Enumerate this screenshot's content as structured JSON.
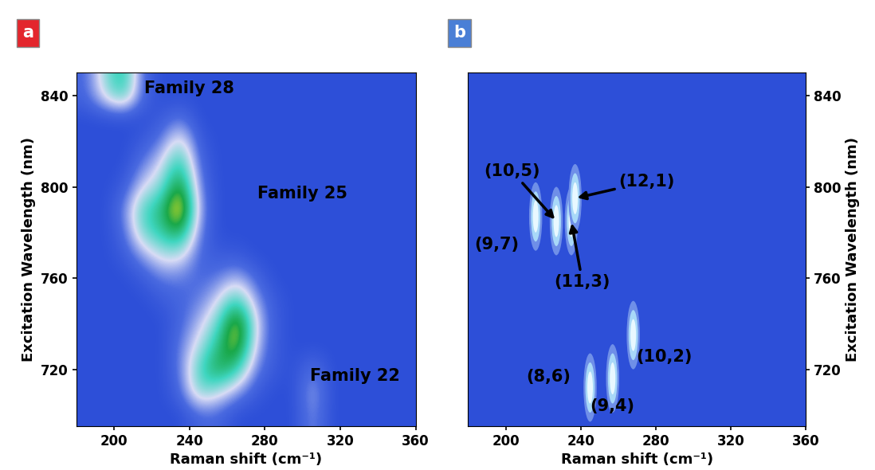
{
  "chart_data": [
    {
      "type": "heatmap",
      "panel_label": "a",
      "color": "#e3262d",
      "x_label": "Raman shift (cm⁻¹)",
      "y_label": "Excitation Wavelength (nm)",
      "xlim": [
        180,
        360
      ],
      "xticks": [
        200,
        240,
        280,
        320,
        360
      ],
      "ylim": [
        695,
        850
      ],
      "yticks": [
        720,
        760,
        800,
        840
      ],
      "x": [
        185,
        195,
        205,
        215,
        225,
        235,
        245,
        255,
        265,
        275,
        285,
        295,
        305,
        315,
        325,
        335,
        345,
        355
      ],
      "y": [
        700,
        710,
        720,
        730,
        740,
        750,
        760,
        770,
        780,
        790,
        800,
        810,
        820,
        830,
        840,
        850
      ],
      "cells": [
        [
          0,
          0,
          0,
          0,
          0,
          0,
          0.1,
          0.1,
          0,
          0,
          0,
          0,
          0.2,
          0,
          0,
          0,
          0,
          0
        ],
        [
          0,
          0,
          0,
          0,
          0,
          0.1,
          0.45,
          0.35,
          0.2,
          0.05,
          0,
          0,
          0.25,
          0,
          0,
          0,
          0,
          0
        ],
        [
          0,
          0,
          0,
          0,
          0,
          0.15,
          0.5,
          0.7,
          0.55,
          0.15,
          0.05,
          0,
          0.15,
          0,
          0,
          0,
          0,
          0
        ],
        [
          0,
          0,
          0,
          0,
          0,
          0.15,
          0.35,
          0.6,
          0.85,
          0.25,
          0.05,
          0,
          0,
          0,
          0,
          0,
          0,
          0
        ],
        [
          0,
          0,
          0,
          0,
          0,
          0.1,
          0.25,
          0.45,
          0.9,
          0.3,
          0.05,
          0,
          0,
          0,
          0,
          0,
          0,
          0
        ],
        [
          0,
          0,
          0,
          0,
          0.05,
          0.1,
          0.15,
          0.3,
          0.55,
          0.2,
          0.05,
          0,
          0,
          0,
          0,
          0,
          0,
          0
        ],
        [
          0,
          0,
          0,
          0.05,
          0.15,
          0.15,
          0.1,
          0.15,
          0.25,
          0.1,
          0,
          0,
          0,
          0,
          0,
          0,
          0,
          0
        ],
        [
          0,
          0,
          0.05,
          0.2,
          0.35,
          0.35,
          0.1,
          0.05,
          0.05,
          0,
          0,
          0,
          0,
          0,
          0,
          0,
          0,
          0
        ],
        [
          0,
          0,
          0.1,
          0.45,
          0.55,
          0.7,
          0.15,
          0,
          0,
          0,
          0,
          0,
          0,
          0,
          0,
          0,
          0,
          0
        ],
        [
          0,
          0,
          0.15,
          0.5,
          0.6,
          1.0,
          0.2,
          0,
          0,
          0,
          0,
          0,
          0,
          0,
          0,
          0,
          0,
          0
        ],
        [
          0,
          0,
          0.05,
          0.3,
          0.4,
          0.8,
          0.15,
          0,
          0,
          0,
          0,
          0,
          0,
          0,
          0,
          0,
          0,
          0
        ],
        [
          0,
          0,
          0,
          0.15,
          0.3,
          0.6,
          0.1,
          0,
          0,
          0,
          0,
          0,
          0,
          0,
          0,
          0,
          0,
          0
        ],
        [
          0,
          0,
          0,
          0.05,
          0.15,
          0.4,
          0.05,
          0,
          0,
          0,
          0,
          0,
          0,
          0,
          0,
          0,
          0,
          0
        ],
        [
          0,
          0,
          0,
          0,
          0.05,
          0.15,
          0,
          0,
          0,
          0,
          0,
          0,
          0,
          0,
          0,
          0,
          0,
          0
        ],
        [
          0.1,
          0.35,
          0.55,
          0.1,
          0,
          0,
          0,
          0,
          0,
          0,
          0,
          0,
          0,
          0,
          0,
          0,
          0,
          0
        ],
        [
          0.1,
          0.4,
          0.6,
          0.1,
          0,
          0,
          0,
          0,
          0,
          0,
          0,
          0,
          0,
          0,
          0,
          0,
          0,
          0
        ]
      ],
      "annotations": [
        {
          "text": "Family 28",
          "x": 240,
          "y": 843
        },
        {
          "text": "Family 25",
          "x": 300,
          "y": 797
        },
        {
          "text": "Family 22",
          "x": 328,
          "y": 717
        }
      ]
    },
    {
      "type": "scatter",
      "panel_label": "b",
      "color": "#4a7fd6",
      "x_label": "Raman shift (cm⁻¹)",
      "y_label": "Excitation Wavelength (nm)",
      "xlim": [
        180,
        360
      ],
      "xticks": [
        200,
        240,
        280,
        320,
        360
      ],
      "ylim": [
        695,
        850
      ],
      "yticks": [
        720,
        760,
        800,
        840
      ],
      "x": [
        216,
        227,
        235,
        237,
        245,
        257,
        268
      ],
      "y": [
        787,
        785,
        785,
        795,
        712,
        716,
        735
      ],
      "labels": [
        "(9,7)",
        "(10,5)",
        "(11,3)",
        "(12,1)",
        "(8,6)",
        "(9,4)",
        "(10,2)"
      ]
    }
  ]
}
